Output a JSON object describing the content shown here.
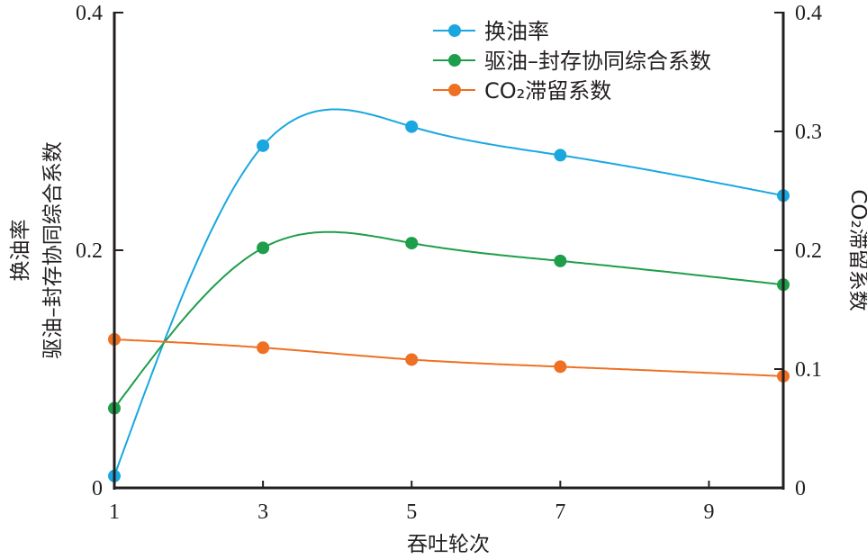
{
  "chart_data": {
    "type": "line",
    "xlabel": "吞吐轮次",
    "ylabel_left_line1": "换油率",
    "ylabel_left_line2": "驱油–封存协同综合系数",
    "ylabel_right": "CO₂滞留系数",
    "x": [
      1,
      3,
      5,
      7,
      10
    ],
    "xlim": [
      1,
      10
    ],
    "xticks": [
      "1",
      "3",
      "5",
      "7",
      "9"
    ],
    "xtick_values": [
      1,
      3,
      5,
      7,
      9
    ],
    "ylim_left": [
      0,
      0.4
    ],
    "yticks_left": [
      "0",
      "0.2",
      "0.4"
    ],
    "ytick_left_values": [
      0,
      0.2,
      0.4
    ],
    "ylim_right": [
      0,
      0.4
    ],
    "yticks_right": [
      "0",
      "0.1",
      "0.2",
      "0.3",
      "0.4"
    ],
    "ytick_right_values": [
      0,
      0.1,
      0.2,
      0.3,
      0.4
    ],
    "grid": false,
    "legend_position": "top-right",
    "series": [
      {
        "name": "换油率",
        "color": "#1aa7e0",
        "values": [
          0.01,
          0.288,
          0.304,
          0.28,
          0.246
        ]
      },
      {
        "name": "驱油–封存协同综合系数",
        "color": "#1e9e4a",
        "values": [
          0.067,
          0.202,
          0.206,
          0.191,
          0.171
        ]
      },
      {
        "name": "CO₂滞留系数",
        "color": "#ee7023",
        "values": [
          0.125,
          0.118,
          0.108,
          0.102,
          0.094
        ]
      }
    ]
  }
}
